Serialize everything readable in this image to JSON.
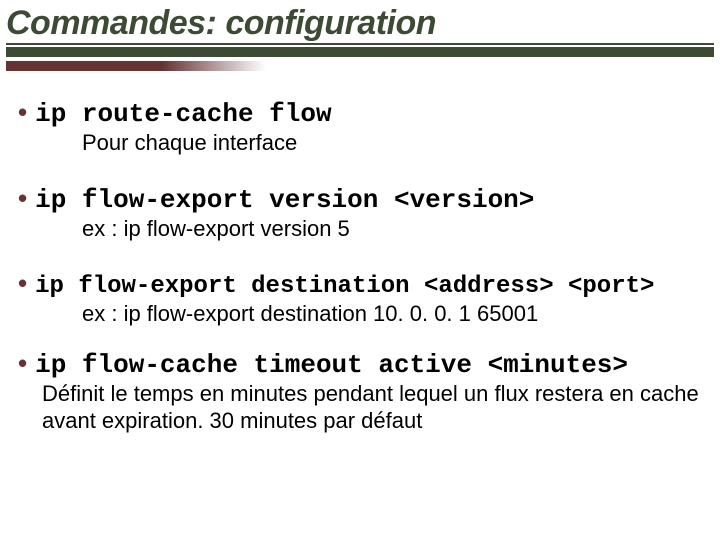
{
  "colors": {
    "title": "#3d4a34",
    "rule": "#3d4a34",
    "accent": "#663333",
    "text": "#000000",
    "background": "#ffffff"
  },
  "typography": {
    "title_fontsize": 34,
    "title_style": "bold italic",
    "cmd_font": "Courier New",
    "cmd_fontsize_large": 26,
    "cmd_fontsize_small": 24,
    "desc_fontsize": 22
  },
  "title": "Commandes: configuration",
  "items": [
    {
      "cmd": "ip route-cache flow",
      "desc": "Pour chaque interface",
      "cmd_size": "large"
    },
    {
      "cmd": "ip flow-export version <version>",
      "desc": "ex :  ip flow-export version 5",
      "cmd_size": "large"
    },
    {
      "cmd": "ip flow-export destination <address> <port>",
      "desc": "ex :  ip flow-export destination 10. 0. 0. 1 65001",
      "cmd_size": "small"
    },
    {
      "cmd": "ip flow-cache timeout active <minutes>",
      "desc": "Définit le temps en minutes pendant lequel un flux restera en cache avant expiration. 30 minutes par défaut",
      "cmd_size": "large",
      "wrap": true
    }
  ]
}
